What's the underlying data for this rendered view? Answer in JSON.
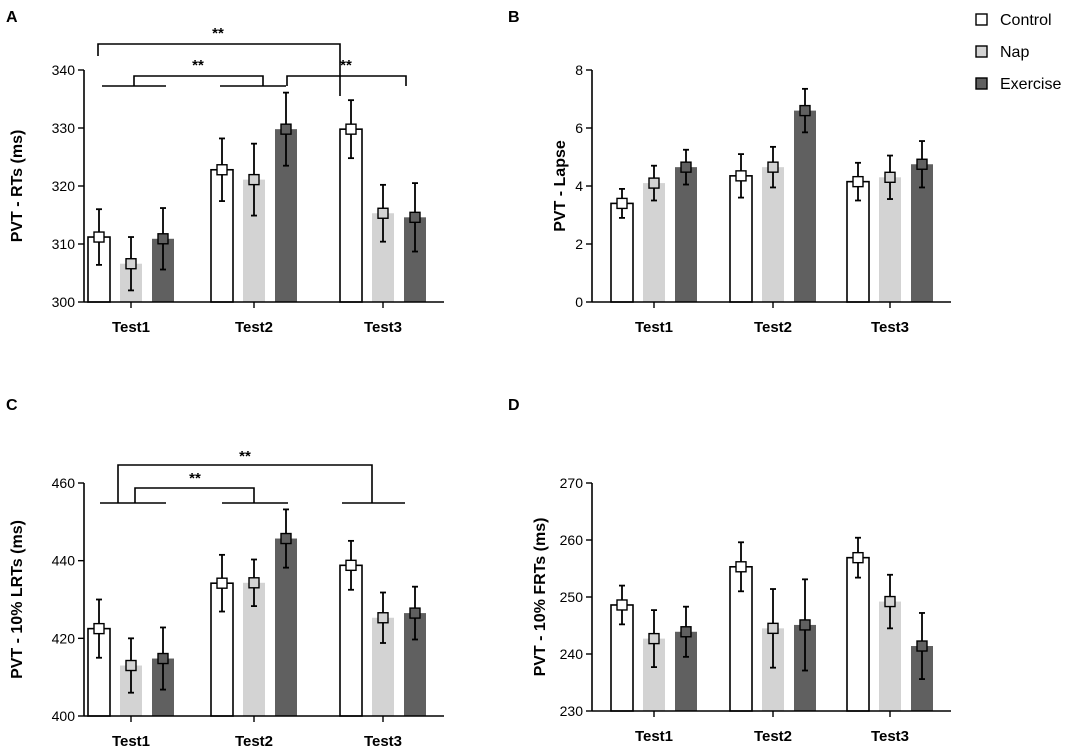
{
  "legend": {
    "items": [
      {
        "label": "Control",
        "color": "#ffffff"
      },
      {
        "label": "Nap",
        "color": "#d3d3d3"
      },
      {
        "label": "Exercise",
        "color": "#606060"
      }
    ]
  },
  "colors": {
    "control": "#ffffff",
    "nap": "#d3d3d3",
    "exercise": "#606060",
    "ink": "#000000"
  },
  "chart_data": [
    {
      "panel": "A",
      "type": "bar",
      "ylabel": "PVT - RTs (ms)",
      "ylim": [
        300,
        340
      ],
      "yticks": [
        300,
        310,
        320,
        330,
        340
      ],
      "categories": [
        "Test1",
        "Test2",
        "Test3"
      ],
      "series": [
        {
          "name": "Control",
          "values": [
            311.2,
            322.8,
            329.8
          ],
          "errors": [
            4.8,
            5.4,
            5.0
          ]
        },
        {
          "name": "Nap",
          "values": [
            306.6,
            321.1,
            315.3
          ],
          "errors": [
            4.6,
            6.2,
            4.9
          ]
        },
        {
          "name": "Exercise",
          "values": [
            310.9,
            329.8,
            314.6
          ],
          "errors": [
            5.3,
            6.3,
            5.9
          ]
        }
      ],
      "significance": [
        {
          "label": "**",
          "from": "Test1",
          "to": "Test3-Control"
        },
        {
          "label": "**",
          "from": "Test1",
          "to": "Test2"
        },
        {
          "label": "**",
          "from": "Test2",
          "to": "Test3"
        }
      ]
    },
    {
      "panel": "B",
      "type": "bar",
      "ylabel": "PVT - Lapse",
      "ylim": [
        0,
        8
      ],
      "yticks": [
        0,
        2,
        4,
        6,
        8
      ],
      "categories": [
        "Test1",
        "Test2",
        "Test3"
      ],
      "series": [
        {
          "name": "Control",
          "values": [
            3.4,
            4.35,
            4.15
          ],
          "errors": [
            0.5,
            0.75,
            0.65
          ]
        },
        {
          "name": "Nap",
          "values": [
            4.1,
            4.65,
            4.3
          ],
          "errors": [
            0.6,
            0.7,
            0.75
          ]
        },
        {
          "name": "Exercise",
          "values": [
            4.65,
            6.6,
            4.75
          ],
          "errors": [
            0.6,
            0.75,
            0.8
          ]
        }
      ],
      "significance": []
    },
    {
      "panel": "C",
      "type": "bar",
      "ylabel": "PVT - 10% LRTs (ms)",
      "ylim": [
        400,
        460
      ],
      "yticks": [
        400,
        420,
        440,
        460
      ],
      "categories": [
        "Test1",
        "Test2",
        "Test3"
      ],
      "series": [
        {
          "name": "Control",
          "values": [
            422.5,
            434.2,
            438.8
          ],
          "errors": [
            7.5,
            7.3,
            6.3
          ]
        },
        {
          "name": "Nap",
          "values": [
            413.0,
            434.3,
            425.3
          ],
          "errors": [
            7.0,
            6.0,
            6.5
          ]
        },
        {
          "name": "Exercise",
          "values": [
            414.8,
            445.7,
            426.5
          ],
          "errors": [
            8.0,
            7.5,
            6.8
          ]
        }
      ],
      "significance": [
        {
          "label": "**",
          "from": "Test1",
          "to": "Test3"
        },
        {
          "label": "**",
          "from": "Test1",
          "to": "Test2"
        }
      ]
    },
    {
      "panel": "D",
      "type": "bar",
      "ylabel": "PVT - 10% FRTs (ms)",
      "ylim": [
        230,
        270
      ],
      "yticks": [
        230,
        240,
        250,
        260,
        270
      ],
      "categories": [
        "Test1",
        "Test2",
        "Test3"
      ],
      "series": [
        {
          "name": "Control",
          "values": [
            248.6,
            255.3,
            256.9
          ],
          "errors": [
            3.4,
            4.3,
            3.5
          ]
        },
        {
          "name": "Nap",
          "values": [
            242.7,
            244.5,
            249.2
          ],
          "errors": [
            5.0,
            6.9,
            4.7
          ]
        },
        {
          "name": "Exercise",
          "values": [
            243.9,
            245.1,
            241.4
          ],
          "errors": [
            4.4,
            8.0,
            5.8
          ]
        }
      ],
      "significance": []
    }
  ]
}
